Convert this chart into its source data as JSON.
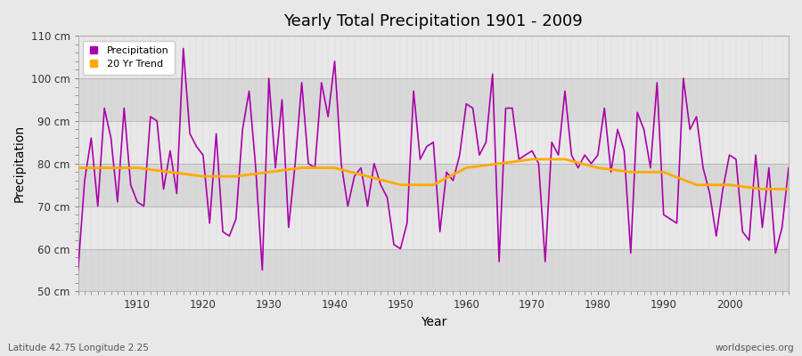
{
  "title": "Yearly Total Precipitation 1901 - 2009",
  "xlabel": "Year",
  "ylabel": "Precipitation",
  "subtitle_left": "Latitude 42.75 Longitude 2.25",
  "subtitle_right": "worldspecies.org",
  "years": [
    1901,
    1902,
    1903,
    1904,
    1905,
    1906,
    1907,
    1908,
    1909,
    1910,
    1911,
    1912,
    1913,
    1914,
    1915,
    1916,
    1917,
    1918,
    1919,
    1920,
    1921,
    1922,
    1923,
    1924,
    1925,
    1926,
    1927,
    1928,
    1929,
    1930,
    1931,
    1932,
    1933,
    1934,
    1935,
    1936,
    1937,
    1938,
    1939,
    1940,
    1941,
    1942,
    1943,
    1944,
    1945,
    1946,
    1947,
    1948,
    1949,
    1950,
    1951,
    1952,
    1953,
    1954,
    1955,
    1956,
    1957,
    1958,
    1959,
    1960,
    1961,
    1962,
    1963,
    1964,
    1965,
    1966,
    1967,
    1968,
    1969,
    1970,
    1971,
    1972,
    1973,
    1974,
    1975,
    1976,
    1977,
    1978,
    1979,
    1980,
    1981,
    1982,
    1983,
    1984,
    1985,
    1986,
    1987,
    1988,
    1989,
    1990,
    1991,
    1992,
    1993,
    1994,
    1995,
    1996,
    1997,
    1998,
    1999,
    2000,
    2001,
    2002,
    2003,
    2004,
    2005,
    2006,
    2007,
    2008,
    2009
  ],
  "precip": [
    55,
    76,
    86,
    70,
    93,
    86,
    71,
    93,
    75,
    71,
    70,
    91,
    90,
    74,
    83,
    73,
    107,
    87,
    84,
    82,
    66,
    87,
    64,
    63,
    67,
    88,
    97,
    79,
    55,
    100,
    79,
    95,
    65,
    80,
    99,
    80,
    79,
    99,
    91,
    104,
    80,
    70,
    77,
    79,
    70,
    80,
    75,
    72,
    61,
    60,
    66,
    97,
    81,
    84,
    85,
    64,
    78,
    76,
    82,
    94,
    93,
    82,
    85,
    101,
    57,
    93,
    93,
    81,
    82,
    83,
    80,
    57,
    85,
    82,
    97,
    82,
    79,
    82,
    80,
    82,
    93,
    78,
    88,
    83,
    59,
    92,
    88,
    79,
    99,
    68,
    67,
    66,
    100,
    88,
    91,
    79,
    73,
    63,
    74,
    82,
    81,
    64,
    62,
    82,
    65,
    79,
    59,
    65,
    79
  ],
  "trend_years": [
    1901,
    1905,
    1910,
    1915,
    1920,
    1925,
    1930,
    1935,
    1940,
    1945,
    1950,
    1955,
    1960,
    1965,
    1970,
    1975,
    1980,
    1985,
    1990,
    1995,
    2000,
    2005,
    2009
  ],
  "trend_vals": [
    79,
    79,
    79,
    78,
    77,
    77,
    78,
    79,
    79,
    77,
    75,
    75,
    79,
    80,
    81,
    81,
    79,
    78,
    78,
    75,
    75,
    74,
    74
  ],
  "precip_color": "#aa00aa",
  "trend_color": "#ffaa00",
  "fig_bg_color": "#e8e8e8",
  "plot_bg_color": "#e0e0e0",
  "band_color_light": "#e8e8e8",
  "band_color_dark": "#d8d8d8",
  "grid_color": "#cccccc",
  "ylim": [
    50,
    110
  ],
  "yticks": [
    50,
    60,
    70,
    80,
    90,
    100,
    110
  ],
  "ytick_labels": [
    "50 cm",
    "60 cm",
    "70 cm",
    "80 cm",
    "90 cm",
    "100 cm",
    "110 cm"
  ],
  "xticks": [
    1910,
    1920,
    1930,
    1940,
    1950,
    1960,
    1970,
    1980,
    1990,
    2000
  ]
}
